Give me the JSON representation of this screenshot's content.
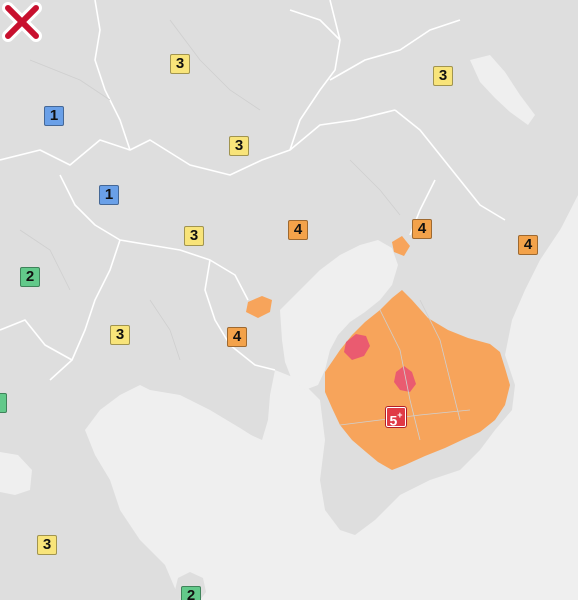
{
  "map": {
    "colors": {
      "sea": "#efefef",
      "land": "#dedede",
      "border": "#ffffff",
      "intensity_4_area": "#f7a45b",
      "intensity_5plus_area": "#ea5b70",
      "epicenter": "#c8102e"
    },
    "legend_scale": [
      "1",
      "2",
      "3",
      "4",
      "5+"
    ],
    "badges": [
      {
        "id": "b01",
        "label": "3"
      },
      {
        "id": "b02",
        "label": "3"
      },
      {
        "id": "b03",
        "label": "1"
      },
      {
        "id": "b04",
        "label": "3"
      },
      {
        "id": "b05",
        "label": "1"
      },
      {
        "id": "b06",
        "label": "3"
      },
      {
        "id": "b07",
        "label": "4"
      },
      {
        "id": "b08",
        "label": "4"
      },
      {
        "id": "b09",
        "label": "4"
      },
      {
        "id": "b10",
        "label": "2"
      },
      {
        "id": "b11",
        "label": "3"
      },
      {
        "id": "b12",
        "label": "4"
      },
      {
        "id": "b13",
        "label": "5"
      },
      {
        "id": "b14",
        "label": "3"
      },
      {
        "id": "b15",
        "label": "2"
      }
    ],
    "epicenter_icon": "x-mark-icon"
  }
}
